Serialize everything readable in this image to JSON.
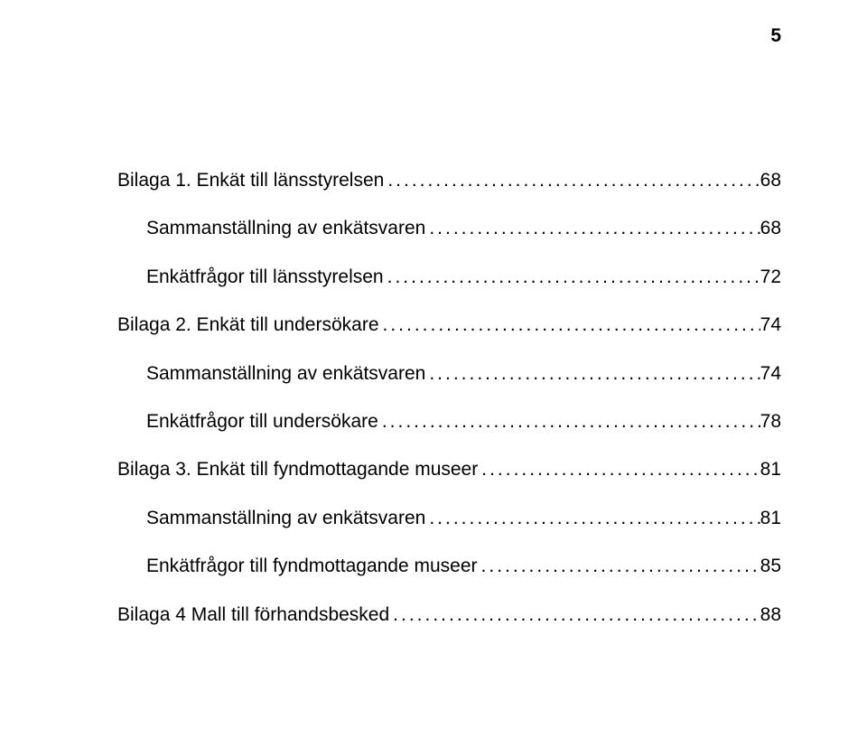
{
  "page_number": "5",
  "text_color": "#000000",
  "background_color": "#ffffff",
  "font_family": "Arial",
  "base_fontsize_pt": 16,
  "entries": [
    {
      "level": 1,
      "label": "Bilaga 1. Enkät till länsstyrelsen",
      "page": "68"
    },
    {
      "level": 2,
      "label": "Sammanställning av enkätsvaren",
      "page": "68"
    },
    {
      "level": 2,
      "label": "Enkätfrågor till länsstyrelsen",
      "page": "72"
    },
    {
      "level": 1,
      "label": "Bilaga 2. Enkät till undersökare",
      "page": "74"
    },
    {
      "level": 2,
      "label": "Sammanställning av enkätsvaren",
      "page": "74"
    },
    {
      "level": 2,
      "label": "Enkätfrågor till undersökare",
      "page": "78"
    },
    {
      "level": 1,
      "label": "Bilaga 3. Enkät till fyndmottagande museer",
      "page": "81"
    },
    {
      "level": 2,
      "label": "Sammanställning av enkätsvaren",
      "page": "81"
    },
    {
      "level": 2,
      "label": "Enkätfrågor till fyndmottagande museer",
      "page": "85"
    },
    {
      "level": 1,
      "label": "Bilaga 4 Mall till förhandsbesked",
      "page": "88"
    }
  ],
  "dot_leader_char": "."
}
